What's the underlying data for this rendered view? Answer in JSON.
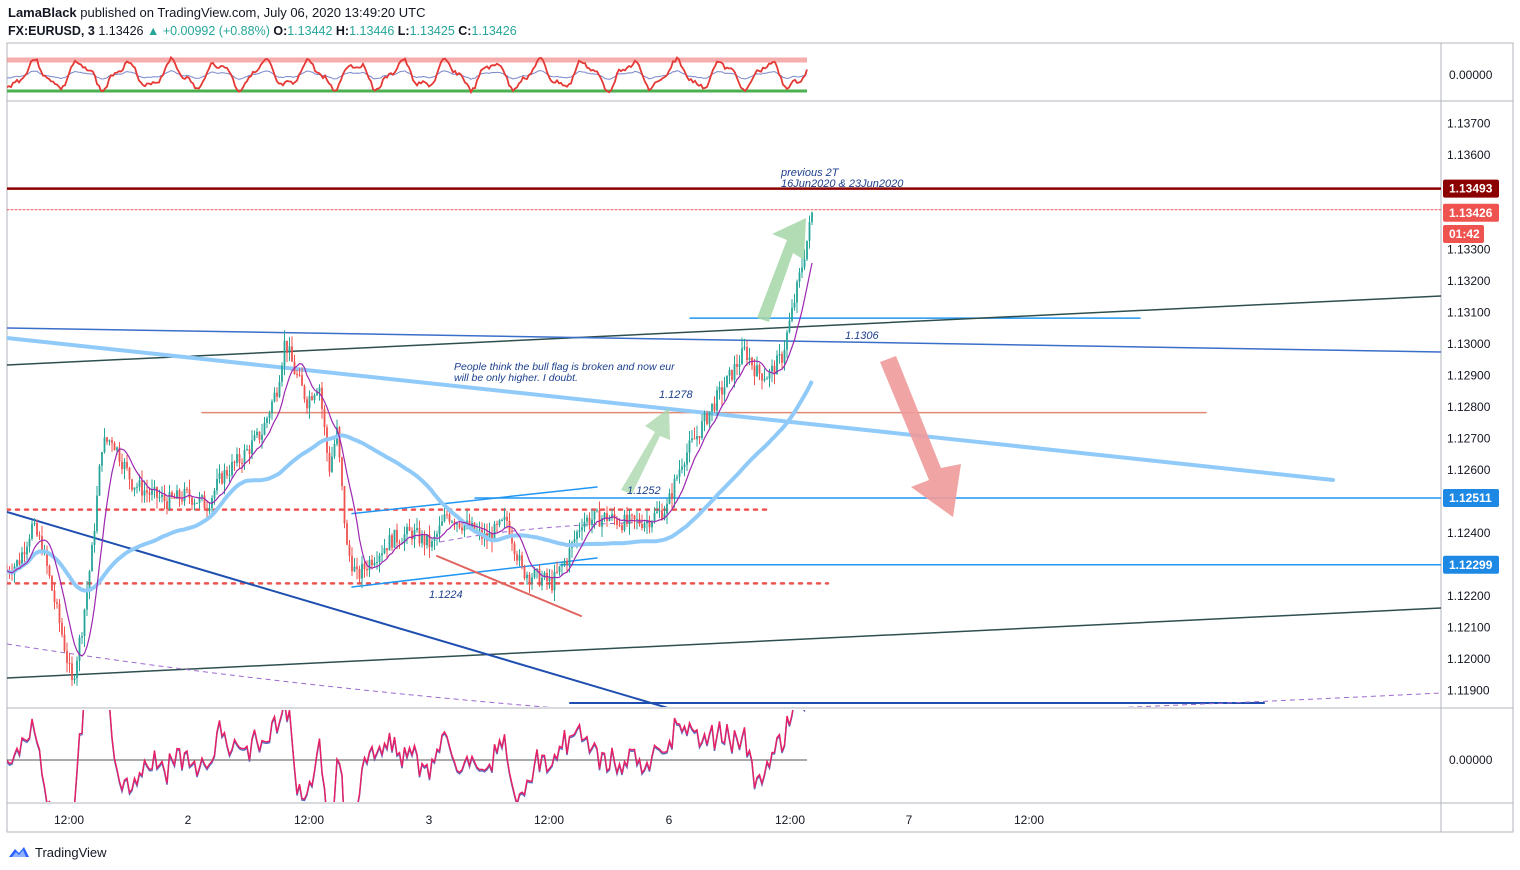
{
  "header": {
    "author": "LamaBlack",
    "published_text": "published on TradingView.com, July 06, 2020 13:49:20 UTC",
    "symbol": "FX:EURUSD, 3",
    "last": "1.13426",
    "change": "▲ +0.00992 (+0.88%)",
    "ohlc": {
      "o_label": "O:",
      "o": "1.13442",
      "h_label": "H:",
      "h": "1.13446",
      "l_label": "L:",
      "l": "1.13425",
      "c_label": "C:",
      "c": "1.13426"
    }
  },
  "footer": {
    "brand": "TradingView"
  },
  "colors": {
    "up": "#26a69a",
    "down": "#ef5350",
    "resistance": "#8b0000",
    "support_line": "#2196f3",
    "ma_fast": "#9c27b0",
    "ma_slow": "#90caf9",
    "trend_dark": "#2f4f4f",
    "trend_blue": "#1e4fb0",
    "hline_salmon": "#e08a74",
    "arrow_green": "#a5d6a7",
    "arrow_red": "#ef9a9a"
  },
  "chart_data": {
    "type": "candlestick",
    "symbol": "FX:EURUSD",
    "timeframe": "3",
    "x_tick_labels": [
      "12:00",
      "2",
      "12:00",
      "3",
      "12:00",
      "6",
      "12:00",
      "7",
      "12:00"
    ],
    "price_axis": {
      "ticks": [
        "1.13700",
        "1.13600",
        "1.13300",
        "1.13200",
        "1.13100",
        "1.13000",
        "1.12900",
        "1.12800",
        "1.12700",
        "1.12600",
        "1.12400",
        "1.12200",
        "1.12100",
        "1.12000",
        "1.11900"
      ],
      "ylim": [
        1.1185,
        1.1383
      ]
    },
    "price_labels": [
      {
        "text": "1.13493",
        "kind": "resistance"
      },
      {
        "text": "1.13426",
        "kind": "last"
      },
      {
        "text": "01:42",
        "kind": "countdown"
      },
      {
        "text": "1.12511",
        "kind": "support"
      },
      {
        "text": "1.12299",
        "kind": "support"
      }
    ],
    "horizontal_levels": [
      1.13493,
      1.12511,
      1.12299,
      1.1306,
      1.1278,
      1.1247,
      1.1234,
      1.1186
    ],
    "upper_oscillator": {
      "axis_label": "0.00000",
      "upper_band": "red",
      "lower_band": "green"
    },
    "lower_oscillator": {
      "axis_label": "0.00000"
    },
    "annotations": [
      {
        "text": "previous 2T",
        "kind": "note"
      },
      {
        "text": "16Jun2020 & 23Jun2020",
        "kind": "note"
      },
      {
        "text": "People think the bull flag is broken and now eur",
        "kind": "note"
      },
      {
        "text": "will be only higher. I doubt.",
        "kind": "note"
      },
      {
        "text": "1.1306",
        "kind": "level"
      },
      {
        "text": "1.1278",
        "kind": "level"
      },
      {
        "text": "1.1252",
        "kind": "level"
      },
      {
        "text": "1.1224",
        "kind": "level"
      }
    ],
    "price_path": [
      [
        0,
        1.1228
      ],
      [
        12,
        1.1231
      ],
      [
        25,
        1.1242
      ],
      [
        35,
        1.1236
      ],
      [
        45,
        1.1222
      ],
      [
        55,
        1.1208
      ],
      [
        65,
        1.1192
      ],
      [
        75,
        1.121
      ],
      [
        85,
        1.1234
      ],
      [
        95,
        1.1268
      ],
      [
        105,
        1.127
      ],
      [
        115,
        1.1263
      ],
      [
        125,
        1.1256
      ],
      [
        140,
        1.1253
      ],
      [
        160,
        1.125
      ],
      [
        180,
        1.1252
      ],
      [
        200,
        1.1249
      ],
      [
        215,
        1.1258
      ],
      [
        235,
        1.1264
      ],
      [
        255,
        1.1272
      ],
      [
        270,
        1.1286
      ],
      [
        278,
        1.1301
      ],
      [
        288,
        1.1291
      ],
      [
        300,
        1.1282
      ],
      [
        312,
        1.1288
      ],
      [
        322,
        1.126
      ],
      [
        330,
        1.1272
      ],
      [
        340,
        1.1235
      ],
      [
        350,
        1.1226
      ],
      [
        365,
        1.1232
      ],
      [
        385,
        1.1238
      ],
      [
        405,
        1.124
      ],
      [
        425,
        1.1236
      ],
      [
        440,
        1.1246
      ],
      [
        460,
        1.1242
      ],
      [
        480,
        1.1238
      ],
      [
        500,
        1.1244
      ],
      [
        515,
        1.1228
      ],
      [
        530,
        1.1226
      ],
      [
        545,
        1.1224
      ],
      [
        560,
        1.1232
      ],
      [
        575,
        1.1244
      ],
      [
        600,
        1.1245
      ],
      [
        620,
        1.1243
      ],
      [
        640,
        1.1244
      ],
      [
        660,
        1.1248
      ],
      [
        675,
        1.1263
      ],
      [
        690,
        1.1271
      ],
      [
        705,
        1.128
      ],
      [
        720,
        1.1288
      ],
      [
        738,
        1.1298
      ],
      [
        750,
        1.1291
      ],
      [
        762,
        1.129
      ],
      [
        775,
        1.1296
      ],
      [
        785,
        1.131
      ],
      [
        795,
        1.1325
      ],
      [
        802,
        1.1336
      ],
      [
        806,
        1.1343
      ]
    ]
  }
}
